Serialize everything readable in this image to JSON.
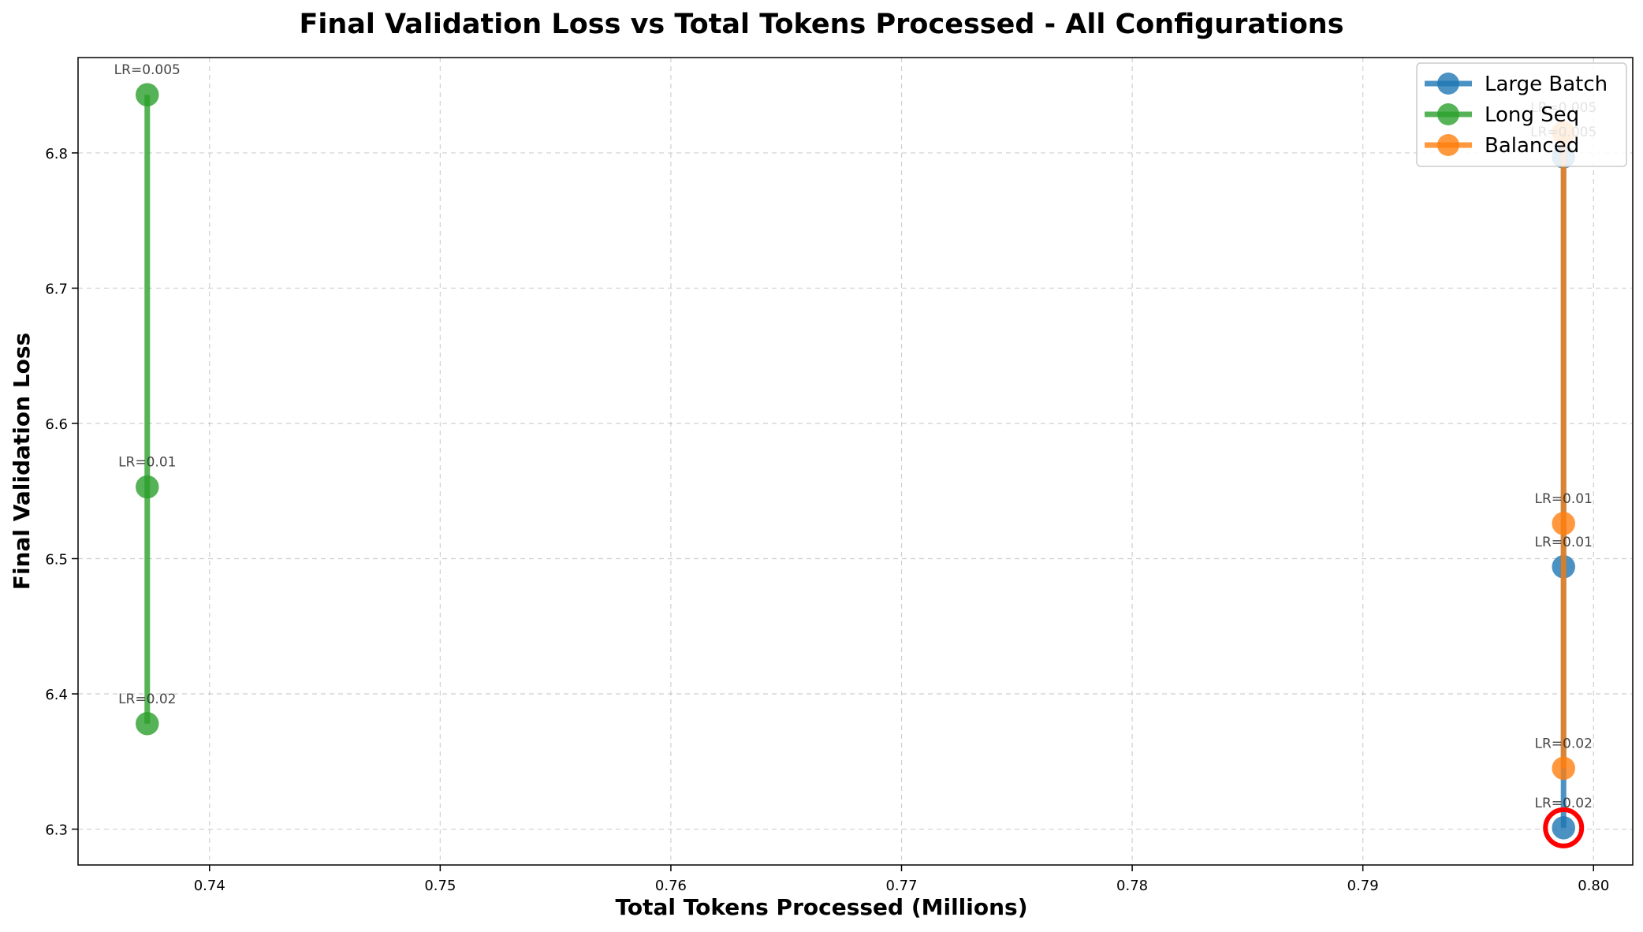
{
  "chart_data": {
    "type": "line",
    "title": "Final Validation Loss vs Total Tokens Processed - All Configurations",
    "xlabel": "Total Tokens Processed (Millions)",
    "ylabel": "Final Validation Loss",
    "xlim": [
      0.7343,
      0.8017
    ],
    "ylim": [
      6.2735,
      6.8705
    ],
    "xticks": [
      "0.74",
      "0.75",
      "0.76",
      "0.77",
      "0.78",
      "0.79",
      "0.80"
    ],
    "xtick_values": [
      0.74,
      0.75,
      0.76,
      0.77,
      0.78,
      0.79,
      0.8
    ],
    "yticks": [
      "6.3",
      "6.4",
      "6.5",
      "6.6",
      "6.7",
      "6.8"
    ],
    "ytick_values": [
      6.3,
      6.4,
      6.5,
      6.6,
      6.7,
      6.8
    ],
    "grid": true,
    "legend_position": "top-right",
    "series": [
      {
        "name": "Large Batch",
        "color": "#1f77b4",
        "points": [
          {
            "x": 0.7987,
            "y": 6.797,
            "label": "LR=0.005"
          },
          {
            "x": 0.7987,
            "y": 6.494,
            "label": "LR=0.01"
          },
          {
            "x": 0.7987,
            "y": 6.301,
            "label": "LR=0.02"
          }
        ]
      },
      {
        "name": "Long Seq",
        "color": "#2ca02c",
        "points": [
          {
            "x": 0.7373,
            "y": 6.843,
            "label": "LR=0.005"
          },
          {
            "x": 0.7373,
            "y": 6.553,
            "label": "LR=0.01"
          },
          {
            "x": 0.7373,
            "y": 6.378,
            "label": "LR=0.02"
          }
        ]
      },
      {
        "name": "Balanced",
        "color": "#ff7f0e",
        "points": [
          {
            "x": 0.7987,
            "y": 6.815,
            "label": "LR=0.005"
          },
          {
            "x": 0.7987,
            "y": 6.526,
            "label": "LR=0.01"
          },
          {
            "x": 0.7987,
            "y": 6.345,
            "label": "LR=0.02"
          }
        ]
      }
    ],
    "highlight": {
      "x": 0.7987,
      "y": 6.301,
      "color": "#ff0000"
    }
  }
}
